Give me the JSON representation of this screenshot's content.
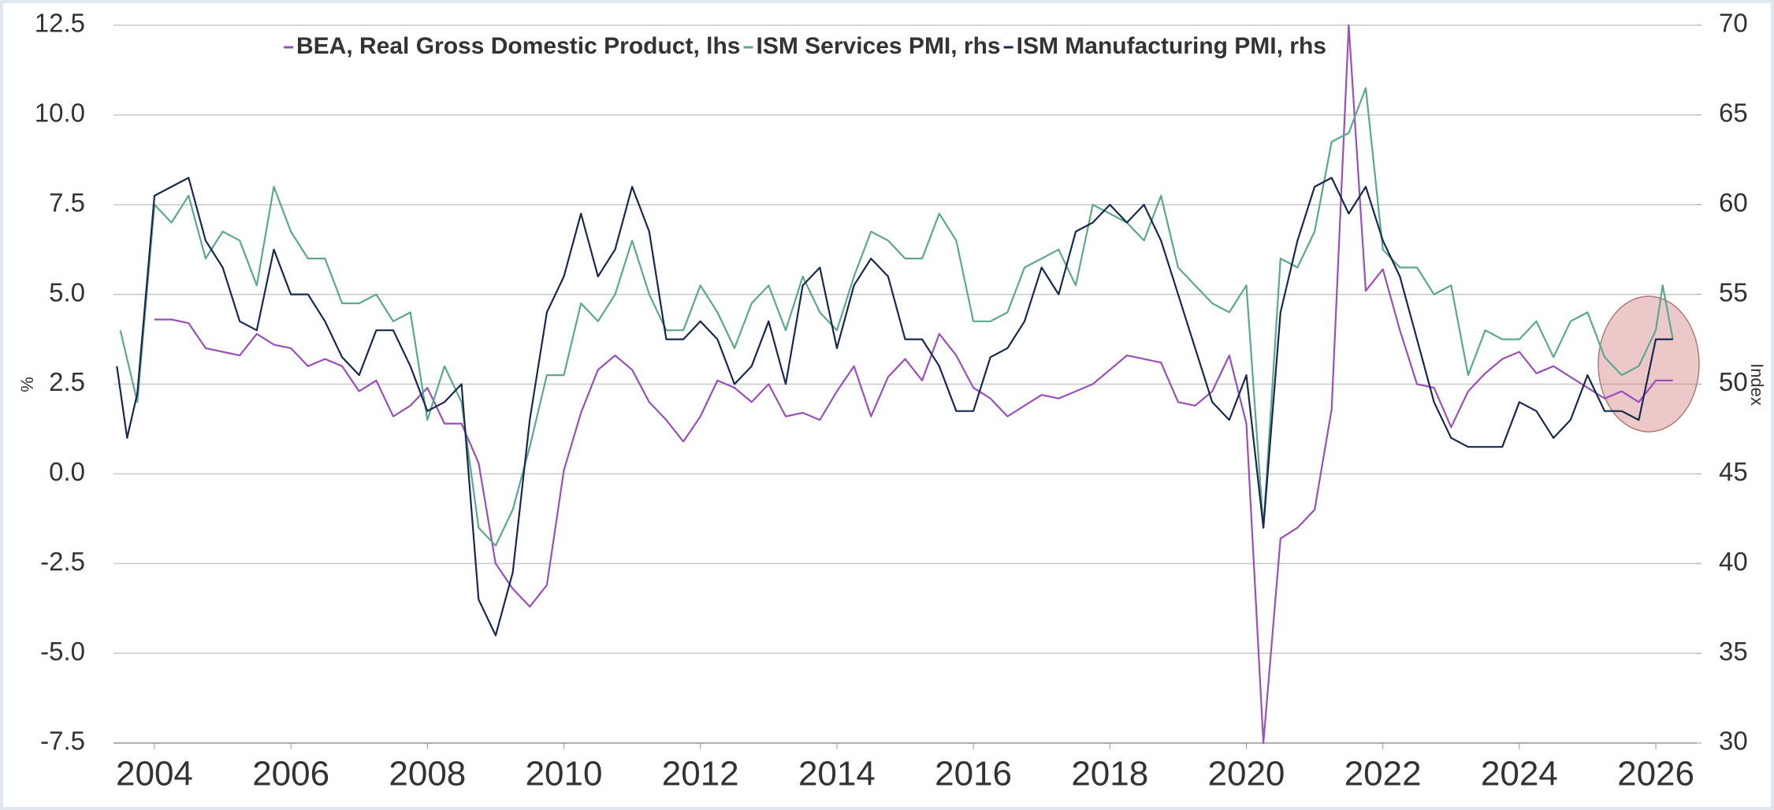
{
  "chart_data": {
    "type": "line",
    "y_label": "%",
    "y2_label": "Index",
    "xlim": [
      2003.4,
      2026.6
    ],
    "xticks": [
      2004,
      2006,
      2008,
      2010,
      2012,
      2014,
      2016,
      2018,
      2020,
      2022,
      2024,
      2026
    ],
    "ylim": [
      -7.5,
      12.5
    ],
    "yticks": [
      -7.5,
      {
        "value": -5,
        "label": "-5.0"
      },
      -2.5,
      {
        "value": 0,
        "label": "0.0"
      },
      2.5,
      {
        "value": 5,
        "label": "5.0"
      },
      7.5,
      {
        "value": 10,
        "label": "10.0"
      },
      12.5
    ],
    "y2lim": [
      30,
      70
    ],
    "y2ticks": [
      30,
      35,
      40,
      45,
      50,
      55,
      60,
      65,
      70
    ],
    "grid": true,
    "legend": "top",
    "series": [
      {
        "name": "BEA, Real Gross Domestic Product, lhs",
        "color": "#9b4fb8",
        "axis": "y",
        "x": [
          2004.0,
          2004.25,
          2004.5,
          2004.75,
          2005.0,
          2005.25,
          2005.5,
          2005.75,
          2006.0,
          2006.25,
          2006.5,
          2006.75,
          2007.0,
          2007.25,
          2007.5,
          2007.75,
          2008.0,
          2008.25,
          2008.5,
          2008.75,
          2009.0,
          2009.25,
          2009.5,
          2009.75,
          2010.0,
          2010.25,
          2010.5,
          2010.75,
          2011.0,
          2011.25,
          2011.5,
          2011.75,
          2012.0,
          2012.25,
          2012.5,
          2012.75,
          2013.0,
          2013.25,
          2013.5,
          2013.75,
          2014.0,
          2014.25,
          2014.5,
          2014.75,
          2015.0,
          2015.25,
          2015.5,
          2015.75,
          2016.0,
          2016.25,
          2016.5,
          2016.75,
          2017.0,
          2017.25,
          2017.5,
          2017.75,
          2018.0,
          2018.25,
          2018.5,
          2018.75,
          2019.0,
          2019.25,
          2019.5,
          2019.75,
          2020.0,
          2020.25,
          2020.5,
          2020.75,
          2021.0,
          2021.25,
          2021.5,
          2021.75,
          2022.0,
          2022.25,
          2022.5,
          2022.75,
          2023.0,
          2023.25,
          2023.5,
          2023.75,
          2024.0,
          2024.25,
          2024.5,
          2024.75,
          2025.0,
          2025.25,
          2025.5,
          2025.75,
          2026.0,
          2026.25
        ],
        "values": [
          4.3,
          4.3,
          4.2,
          3.5,
          3.4,
          3.3,
          3.9,
          3.6,
          3.5,
          3.0,
          3.2,
          3.0,
          2.3,
          2.6,
          1.6,
          1.9,
          2.4,
          1.4,
          1.4,
          0.3,
          -2.5,
          -3.2,
          -3.7,
          -3.1,
          0.1,
          1.7,
          2.9,
          3.3,
          2.9,
          2.0,
          1.5,
          0.9,
          1.6,
          2.6,
          2.4,
          2.0,
          2.5,
          1.6,
          1.7,
          1.5,
          2.3,
          3.0,
          1.6,
          2.7,
          3.2,
          2.6,
          3.9,
          3.3,
          2.4,
          2.1,
          1.6,
          1.9,
          2.2,
          2.1,
          2.3,
          2.5,
          2.9,
          3.3,
          3.2,
          3.1,
          2.0,
          1.9,
          2.3,
          3.3,
          1.4,
          -7.5,
          -1.8,
          -1.5,
          -1.0,
          1.8,
          12.5,
          5.1,
          5.7,
          4.0,
          2.5,
          2.4,
          1.3,
          2.3,
          2.8,
          3.2,
          3.4,
          2.8,
          3.0,
          2.7,
          2.4,
          2.1,
          2.3,
          2.0,
          2.6,
          2.6
        ]
      },
      {
        "name": "ISM Services PMI, rhs",
        "color": "#5ba88c",
        "axis": "y2",
        "x": [
          2003.5,
          2003.75,
          2004.0,
          2004.25,
          2004.5,
          2004.75,
          2005.0,
          2005.25,
          2005.5,
          2005.75,
          2006.0,
          2006.25,
          2006.5,
          2006.75,
          2007.0,
          2007.25,
          2007.5,
          2007.75,
          2008.0,
          2008.25,
          2008.5,
          2008.75,
          2009.0,
          2009.25,
          2009.5,
          2009.75,
          2010.0,
          2010.25,
          2010.5,
          2010.75,
          2011.0,
          2011.25,
          2011.5,
          2011.75,
          2012.0,
          2012.25,
          2012.5,
          2012.75,
          2013.0,
          2013.25,
          2013.5,
          2013.75,
          2014.0,
          2014.25,
          2014.5,
          2014.75,
          2015.0,
          2015.25,
          2015.5,
          2015.75,
          2016.0,
          2016.25,
          2016.5,
          2016.75,
          2017.0,
          2017.25,
          2017.5,
          2017.75,
          2018.0,
          2018.25,
          2018.5,
          2018.75,
          2019.0,
          2019.25,
          2019.5,
          2019.75,
          2020.0,
          2020.25,
          2020.5,
          2020.75,
          2021.0,
          2021.25,
          2021.5,
          2021.75,
          2022.0,
          2022.25,
          2022.5,
          2022.75,
          2023.0,
          2023.25,
          2023.5,
          2023.75,
          2024.0,
          2024.25,
          2024.5,
          2024.75,
          2025.0,
          2025.25,
          2025.5,
          2025.75,
          2026.0,
          2026.1,
          2026.25
        ],
        "values": [
          53,
          49,
          60,
          59,
          60.5,
          57,
          58.5,
          58,
          55.5,
          61,
          58.5,
          57,
          57,
          54.5,
          54.5,
          55,
          53.5,
          54,
          48,
          51,
          49,
          42,
          41,
          43,
          46.5,
          50.5,
          50.5,
          54.5,
          53.5,
          55,
          58,
          55,
          53,
          53,
          55.5,
          54,
          52,
          54.5,
          55.5,
          53,
          56,
          54,
          53,
          56,
          58.5,
          58,
          57,
          57,
          59.5,
          58,
          53.5,
          53.5,
          54,
          56.5,
          57,
          57.5,
          55.5,
          60,
          59.5,
          59,
          58,
          60.5,
          56.5,
          55.5,
          54.5,
          54,
          55.5,
          42,
          57,
          56.5,
          58.5,
          63.5,
          64,
          66.5,
          57.5,
          56.5,
          56.5,
          55,
          55.5,
          50.5,
          53,
          52.5,
          52.5,
          53.5,
          51.5,
          53.5,
          54,
          51.5,
          50.5,
          51,
          53,
          55.5,
          52.5
        ]
      },
      {
        "name": "ISM Manufacturing PMI, rhs",
        "color": "#17294f",
        "axis": "y2",
        "x": [
          2003.45,
          2003.6,
          2003.75,
          2004.0,
          2004.25,
          2004.5,
          2004.75,
          2005.0,
          2005.25,
          2005.5,
          2005.75,
          2006.0,
          2006.25,
          2006.5,
          2006.75,
          2007.0,
          2007.25,
          2007.5,
          2007.75,
          2008.0,
          2008.25,
          2008.5,
          2008.75,
          2009.0,
          2009.25,
          2009.5,
          2009.75,
          2010.0,
          2010.25,
          2010.5,
          2010.75,
          2011.0,
          2011.25,
          2011.5,
          2011.75,
          2012.0,
          2012.25,
          2012.5,
          2012.75,
          2013.0,
          2013.25,
          2013.5,
          2013.75,
          2014.0,
          2014.25,
          2014.5,
          2014.75,
          2015.0,
          2015.25,
          2015.5,
          2015.75,
          2016.0,
          2016.25,
          2016.5,
          2016.75,
          2017.0,
          2017.25,
          2017.5,
          2017.75,
          2018.0,
          2018.25,
          2018.5,
          2018.75,
          2019.0,
          2019.25,
          2019.5,
          2019.75,
          2020.0,
          2020.25,
          2020.5,
          2020.75,
          2021.0,
          2021.25,
          2021.5,
          2021.75,
          2022.0,
          2022.25,
          2022.5,
          2022.75,
          2023.0,
          2023.25,
          2023.5,
          2023.75,
          2024.0,
          2024.25,
          2024.5,
          2024.75,
          2025.0,
          2025.25,
          2025.5,
          2025.75,
          2026.0,
          2026.25
        ],
        "values": [
          51,
          47,
          49.5,
          60.5,
          61,
          61.5,
          58,
          56.5,
          53.5,
          53,
          57.5,
          55,
          55,
          53.5,
          51.5,
          50.5,
          53,
          53,
          51,
          48.5,
          49,
          50,
          38,
          36,
          39.5,
          48,
          54,
          56,
          59.5,
          56,
          57.5,
          61,
          58.5,
          52.5,
          52.5,
          53.5,
          52.5,
          50,
          51,
          53.5,
          50,
          55.5,
          56.5,
          52,
          55.5,
          57,
          56,
          52.5,
          52.5,
          51,
          48.5,
          48.5,
          51.5,
          52,
          53.5,
          56.5,
          55,
          58.5,
          59,
          60,
          59,
          60,
          58,
          55,
          52,
          49,
          48,
          50.5,
          42,
          54,
          58,
          61,
          61.5,
          59.5,
          61,
          58,
          56,
          52.5,
          49,
          47,
          46.5,
          46.5,
          46.5,
          49,
          48.5,
          47,
          48,
          50.5,
          48.5,
          48.5,
          48,
          52.5,
          52.5
        ]
      }
    ]
  }
}
